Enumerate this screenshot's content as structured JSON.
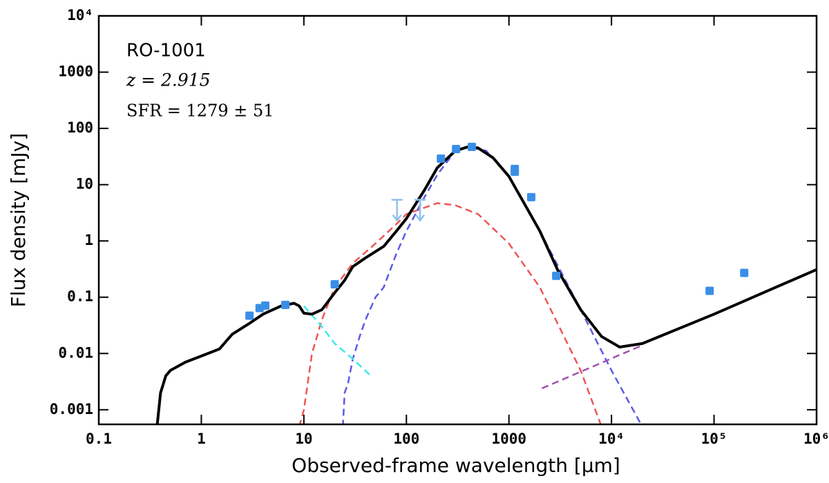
{
  "chart_data": {
    "type": "line",
    "annotations": [
      "RO-1001",
      "z = 2.915",
      "SFR = 1279 ± 51"
    ],
    "xlabel": "Observed-frame wavelength [μm]",
    "ylabel": "Flux density [mJy]",
    "xscale": "log",
    "yscale": "log",
    "xlim": [
      0.1,
      1000000
    ],
    "ylim": [
      0.00055,
      10000
    ],
    "xticks": [
      0.1,
      1,
      10,
      100,
      1000,
      {
        "value": 10000,
        "label": "10⁴"
      },
      {
        "value": 100000,
        "label": "10⁵"
      },
      {
        "value": 1000000,
        "label": "10⁶"
      }
    ],
    "yticks": [
      0.001,
      0.01,
      0.1,
      1,
      10,
      100,
      1000,
      {
        "value": 10000,
        "label": "10⁴"
      }
    ],
    "series": [
      {
        "style": "line",
        "color": "#ee5555",
        "dash": true,
        "x": [
          9,
          10,
          12,
          15,
          20,
          30,
          50,
          80,
          100,
          200,
          300,
          500,
          1000,
          2000,
          5000,
          8000
        ],
        "values": [
          0.0005,
          0.001,
          0.01,
          0.04,
          0.15,
          0.4,
          0.9,
          2,
          3,
          4.7,
          4.3,
          3,
          0.9,
          0.15,
          0.005,
          0.0005
        ]
      },
      {
        "style": "line",
        "color": "#5a5ae6",
        "dash": true,
        "x": [
          24,
          25,
          27,
          30,
          35,
          40,
          50,
          60,
          80,
          100,
          150,
          200,
          300,
          400,
          600,
          1000,
          2000,
          5000,
          10000,
          20000
        ],
        "values": [
          0.0005,
          0.002,
          0.003,
          0.008,
          0.02,
          0.04,
          0.1,
          0.15,
          0.6,
          1.5,
          6,
          15,
          40,
          47,
          40,
          14,
          1.5,
          0.06,
          0.005,
          0.0005
        ]
      },
      {
        "style": "line",
        "color": "#40e8e8",
        "dash": true,
        "x": [
          10,
          15,
          20,
          30,
          45
        ],
        "values": [
          0.07,
          0.03,
          0.015,
          0.008,
          0.004
        ]
      },
      {
        "style": "line",
        "color": "#a050b0",
        "dash": true,
        "x": [
          2100,
          20000
        ],
        "values": [
          0.0024,
          0.014
        ]
      },
      {
        "style": "line",
        "color": "#000000",
        "dash": false,
        "x": [
          0.37,
          0.4,
          0.45,
          0.5,
          0.7,
          1,
          1.5,
          2,
          3,
          4,
          6,
          8,
          9,
          10,
          12,
          15,
          20,
          25,
          30,
          40,
          60,
          80,
          100,
          150,
          200,
          300,
          400,
          500,
          700,
          1000,
          2000,
          3000,
          5000,
          8000,
          12000,
          20000,
          100000,
          1000000
        ],
        "values": [
          0.0005,
          0.002,
          0.004,
          0.005,
          0.007,
          0.009,
          0.012,
          0.022,
          0.035,
          0.05,
          0.07,
          0.078,
          0.07,
          0.052,
          0.05,
          0.06,
          0.12,
          0.2,
          0.35,
          0.5,
          0.8,
          1.5,
          2.5,
          8,
          20,
          40,
          47,
          45,
          30,
          14,
          1.5,
          0.3,
          0.06,
          0.02,
          0.013,
          0.015,
          0.05,
          0.31
        ]
      },
      {
        "style": "upper_limit",
        "color": "#8fc0ee",
        "x": [
          81,
          136
        ],
        "values": [
          5.4,
          5.4
        ]
      },
      {
        "style": "marker",
        "color": "#3a8ee6",
        "x": [
          2.95,
          3.7,
          4.2,
          6.6,
          20,
          217,
          305,
          435,
          1140,
          1140,
          1650,
          2890,
          90600,
          197000
        ],
        "values": [
          0.047,
          0.064,
          0.071,
          0.073,
          0.17,
          29,
          43,
          47,
          19,
          17,
          6.0,
          0.24,
          0.13,
          0.27
        ]
      }
    ]
  }
}
